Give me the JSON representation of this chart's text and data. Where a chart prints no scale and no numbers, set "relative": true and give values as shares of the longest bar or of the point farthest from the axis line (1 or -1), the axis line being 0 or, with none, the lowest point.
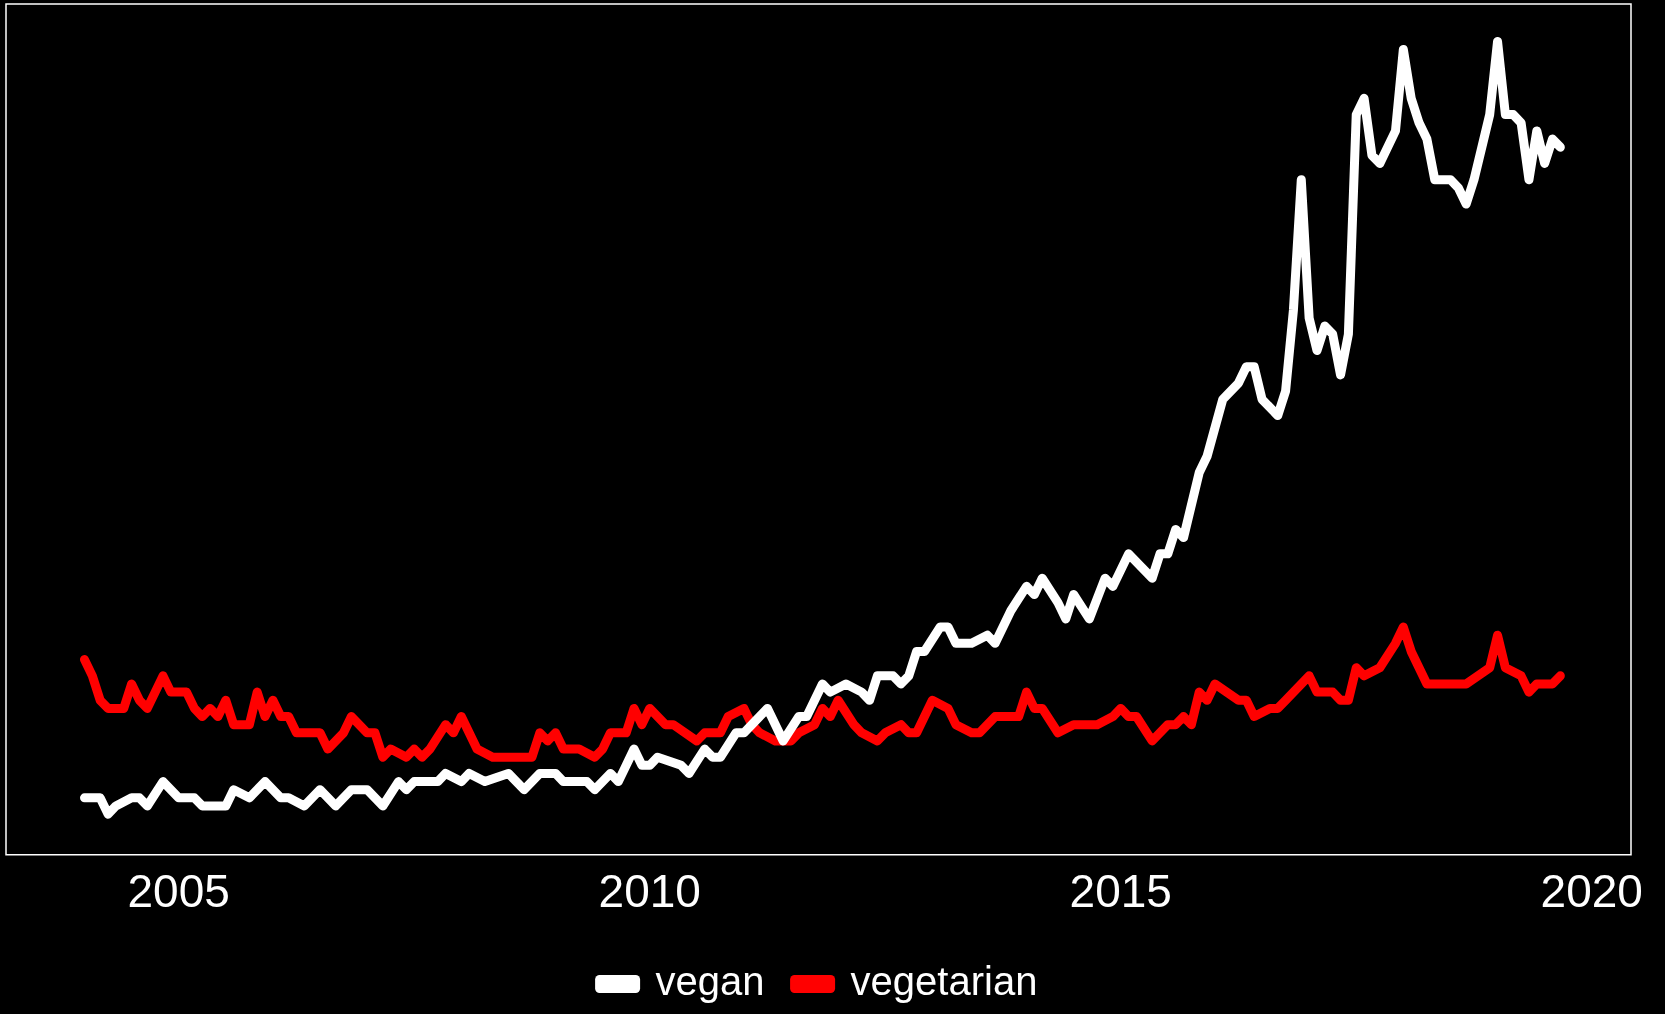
{
  "chart_data": {
    "type": "line",
    "relative": true,
    "legend": "bottom",
    "grid": false,
    "xlim": [
      "2003-03",
      "2020-06"
    ],
    "xticks": [
      "2005",
      "2010",
      "2015",
      "2020"
    ],
    "series": [
      {
        "name": "vegan",
        "color": "#ffffff",
        "x": [
          "2004-01",
          "2004-03",
          "2004-04",
          "2004-05",
          "2004-07",
          "2004-08",
          "2004-09",
          "2004-11",
          "2005-01",
          "2005-03",
          "2005-04",
          "2005-07",
          "2005-08",
          "2005-10",
          "2005-12",
          "2006-02",
          "2006-03",
          "2006-05",
          "2006-07",
          "2006-09",
          "2006-11",
          "2007-01",
          "2007-03",
          "2007-05",
          "2007-06",
          "2007-07",
          "2007-10",
          "2007-11",
          "2008-01",
          "2008-02",
          "2008-04",
          "2008-07",
          "2008-09",
          "2008-11",
          "2009-01",
          "2009-02",
          "2009-05",
          "2009-06",
          "2009-08",
          "2009-09",
          "2009-11",
          "2009-12",
          "2010-01",
          "2010-02",
          "2010-05",
          "2010-06",
          "2010-08",
          "2010-09",
          "2010-10",
          "2010-12",
          "2011-01",
          "2011-04",
          "2011-06",
          "2011-08",
          "2011-09",
          "2011-11",
          "2011-12",
          "2012-02",
          "2012-04",
          "2012-05",
          "2012-06",
          "2012-08",
          "2012-09",
          "2012-10",
          "2012-11",
          "2012-12",
          "2013-02",
          "2013-03",
          "2013-04",
          "2013-06",
          "2013-08",
          "2013-09",
          "2013-11",
          "2014-01",
          "2014-02",
          "2014-03",
          "2014-05",
          "2014-06",
          "2014-07",
          "2014-09",
          "2014-11",
          "2014-12",
          "2015-02",
          "2015-05",
          "2015-06",
          "2015-07",
          "2015-08",
          "2015-09",
          "2015-11",
          "2015-12",
          "2016-02",
          "2016-04",
          "2016-05",
          "2016-06",
          "2016-07",
          "2016-09",
          "2016-10",
          "2016-11",
          "2016-12",
          "2017-01",
          "2017-02",
          "2017-03",
          "2017-04",
          "2017-05",
          "2017-06",
          "2017-07",
          "2017-08",
          "2017-09",
          "2017-10",
          "2017-12",
          "2018-01",
          "2018-02",
          "2018-03",
          "2018-04",
          "2018-05",
          "2018-07",
          "2018-08",
          "2018-09",
          "2018-10",
          "2018-12",
          "2019-01",
          "2019-02",
          "2019-03",
          "2019-04",
          "2019-05",
          "2019-06",
          "2019-07",
          "2019-08",
          "2019-09"
        ],
        "values": [
          0.07,
          0.07,
          0.05,
          0.06,
          0.07,
          0.07,
          0.06,
          0.09,
          0.07,
          0.07,
          0.06,
          0.06,
          0.08,
          0.07,
          0.09,
          0.07,
          0.07,
          0.06,
          0.08,
          0.06,
          0.08,
          0.08,
          0.06,
          0.09,
          0.08,
          0.09,
          0.09,
          0.1,
          0.09,
          0.1,
          0.09,
          0.1,
          0.08,
          0.1,
          0.1,
          0.09,
          0.09,
          0.08,
          0.1,
          0.09,
          0.13,
          0.11,
          0.11,
          0.12,
          0.11,
          0.1,
          0.13,
          0.12,
          0.12,
          0.15,
          0.15,
          0.18,
          0.14,
          0.17,
          0.17,
          0.21,
          0.2,
          0.21,
          0.2,
          0.19,
          0.22,
          0.22,
          0.21,
          0.22,
          0.25,
          0.25,
          0.28,
          0.28,
          0.26,
          0.26,
          0.27,
          0.26,
          0.3,
          0.33,
          0.32,
          0.34,
          0.31,
          0.29,
          0.32,
          0.29,
          0.34,
          0.33,
          0.37,
          0.34,
          0.37,
          0.37,
          0.4,
          0.39,
          0.47,
          0.49,
          0.56,
          0.58,
          0.6,
          0.6,
          0.56,
          0.54,
          0.57,
          0.67,
          0.83,
          0.66,
          0.62,
          0.65,
          0.64,
          0.59,
          0.64,
          0.91,
          0.93,
          0.86,
          0.85,
          0.89,
          0.99,
          0.93,
          0.9,
          0.88,
          0.83,
          0.83,
          0.82,
          0.8,
          0.83,
          0.91,
          1,
          0.91,
          0.91,
          0.9,
          0.83,
          0.89,
          0.85,
          0.88,
          0.87
        ]
      },
      {
        "name": "vegetarian",
        "color": "#ff0000",
        "x": [
          "2004-01",
          "2004-02",
          "2004-03",
          "2004-04",
          "2004-06",
          "2004-07",
          "2004-08",
          "2004-09",
          "2004-11",
          "2004-12",
          "2005-02",
          "2005-03",
          "2005-04",
          "2005-05",
          "2005-06",
          "2005-07",
          "2005-08",
          "2005-10",
          "2005-11",
          "2005-12",
          "2006-01",
          "2006-02",
          "2006-03",
          "2006-04",
          "2006-07",
          "2006-08",
          "2006-10",
          "2006-11",
          "2007-01",
          "2007-02",
          "2007-03",
          "2007-04",
          "2007-06",
          "2007-07",
          "2007-08",
          "2007-09",
          "2007-11",
          "2007-12",
          "2008-01",
          "2008-02",
          "2008-03",
          "2008-05",
          "2008-10",
          "2008-11",
          "2008-12",
          "2009-01",
          "2009-02",
          "2009-04",
          "2009-06",
          "2009-07",
          "2009-08",
          "2009-10",
          "2009-11",
          "2009-12",
          "2010-01",
          "2010-03",
          "2010-04",
          "2010-07",
          "2010-08",
          "2010-10",
          "2010-11",
          "2011-01",
          "2011-02",
          "2011-03",
          "2011-05",
          "2011-07",
          "2011-08",
          "2011-10",
          "2011-11",
          "2011-12",
          "2012-01",
          "2012-03",
          "2012-04",
          "2012-06",
          "2012-07",
          "2012-09",
          "2012-10",
          "2012-11",
          "2013-01",
          "2013-03",
          "2013-04",
          "2013-06",
          "2013-07",
          "2013-09",
          "2013-12",
          "2014-01",
          "2014-02",
          "2014-03",
          "2014-05",
          "2014-07",
          "2014-10",
          "2014-12",
          "2015-01",
          "2015-02",
          "2015-03",
          "2015-05",
          "2015-07",
          "2015-08",
          "2015-09",
          "2015-10",
          "2015-11",
          "2015-12",
          "2016-01",
          "2016-04",
          "2016-05",
          "2016-06",
          "2016-08",
          "2016-09",
          "2016-10",
          "2017-01",
          "2017-02",
          "2017-04",
          "2017-05",
          "2017-06",
          "2017-07",
          "2017-08",
          "2017-10",
          "2017-12",
          "2018-01",
          "2018-02",
          "2018-04",
          "2018-09",
          "2018-12",
          "2019-01",
          "2019-02",
          "2019-04",
          "2019-05",
          "2019-06",
          "2019-08",
          "2019-09"
        ],
        "values": [
          0.24,
          0.22,
          0.19,
          0.18,
          0.18,
          0.21,
          0.19,
          0.18,
          0.22,
          0.2,
          0.2,
          0.18,
          0.17,
          0.18,
          0.17,
          0.19,
          0.16,
          0.16,
          0.2,
          0.17,
          0.19,
          0.17,
          0.17,
          0.15,
          0.15,
          0.13,
          0.15,
          0.17,
          0.15,
          0.15,
          0.12,
          0.13,
          0.12,
          0.13,
          0.12,
          0.13,
          0.16,
          0.15,
          0.17,
          0.15,
          0.13,
          0.12,
          0.12,
          0.15,
          0.14,
          0.15,
          0.13,
          0.13,
          0.12,
          0.13,
          0.15,
          0.15,
          0.18,
          0.16,
          0.18,
          0.16,
          0.16,
          0.14,
          0.15,
          0.15,
          0.17,
          0.18,
          0.16,
          0.15,
          0.14,
          0.14,
          0.15,
          0.16,
          0.18,
          0.17,
          0.19,
          0.16,
          0.15,
          0.14,
          0.15,
          0.16,
          0.15,
          0.15,
          0.19,
          0.18,
          0.16,
          0.15,
          0.15,
          0.17,
          0.17,
          0.2,
          0.18,
          0.18,
          0.15,
          0.16,
          0.16,
          0.17,
          0.18,
          0.17,
          0.17,
          0.14,
          0.16,
          0.16,
          0.17,
          0.16,
          0.2,
          0.19,
          0.21,
          0.19,
          0.19,
          0.17,
          0.18,
          0.18,
          0.19,
          0.22,
          0.2,
          0.2,
          0.19,
          0.19,
          0.23,
          0.22,
          0.23,
          0.26,
          0.28,
          0.25,
          0.21,
          0.21,
          0.23,
          0.27,
          0.23,
          0.22,
          0.2,
          0.21,
          0.21,
          0.22
        ]
      }
    ]
  }
}
